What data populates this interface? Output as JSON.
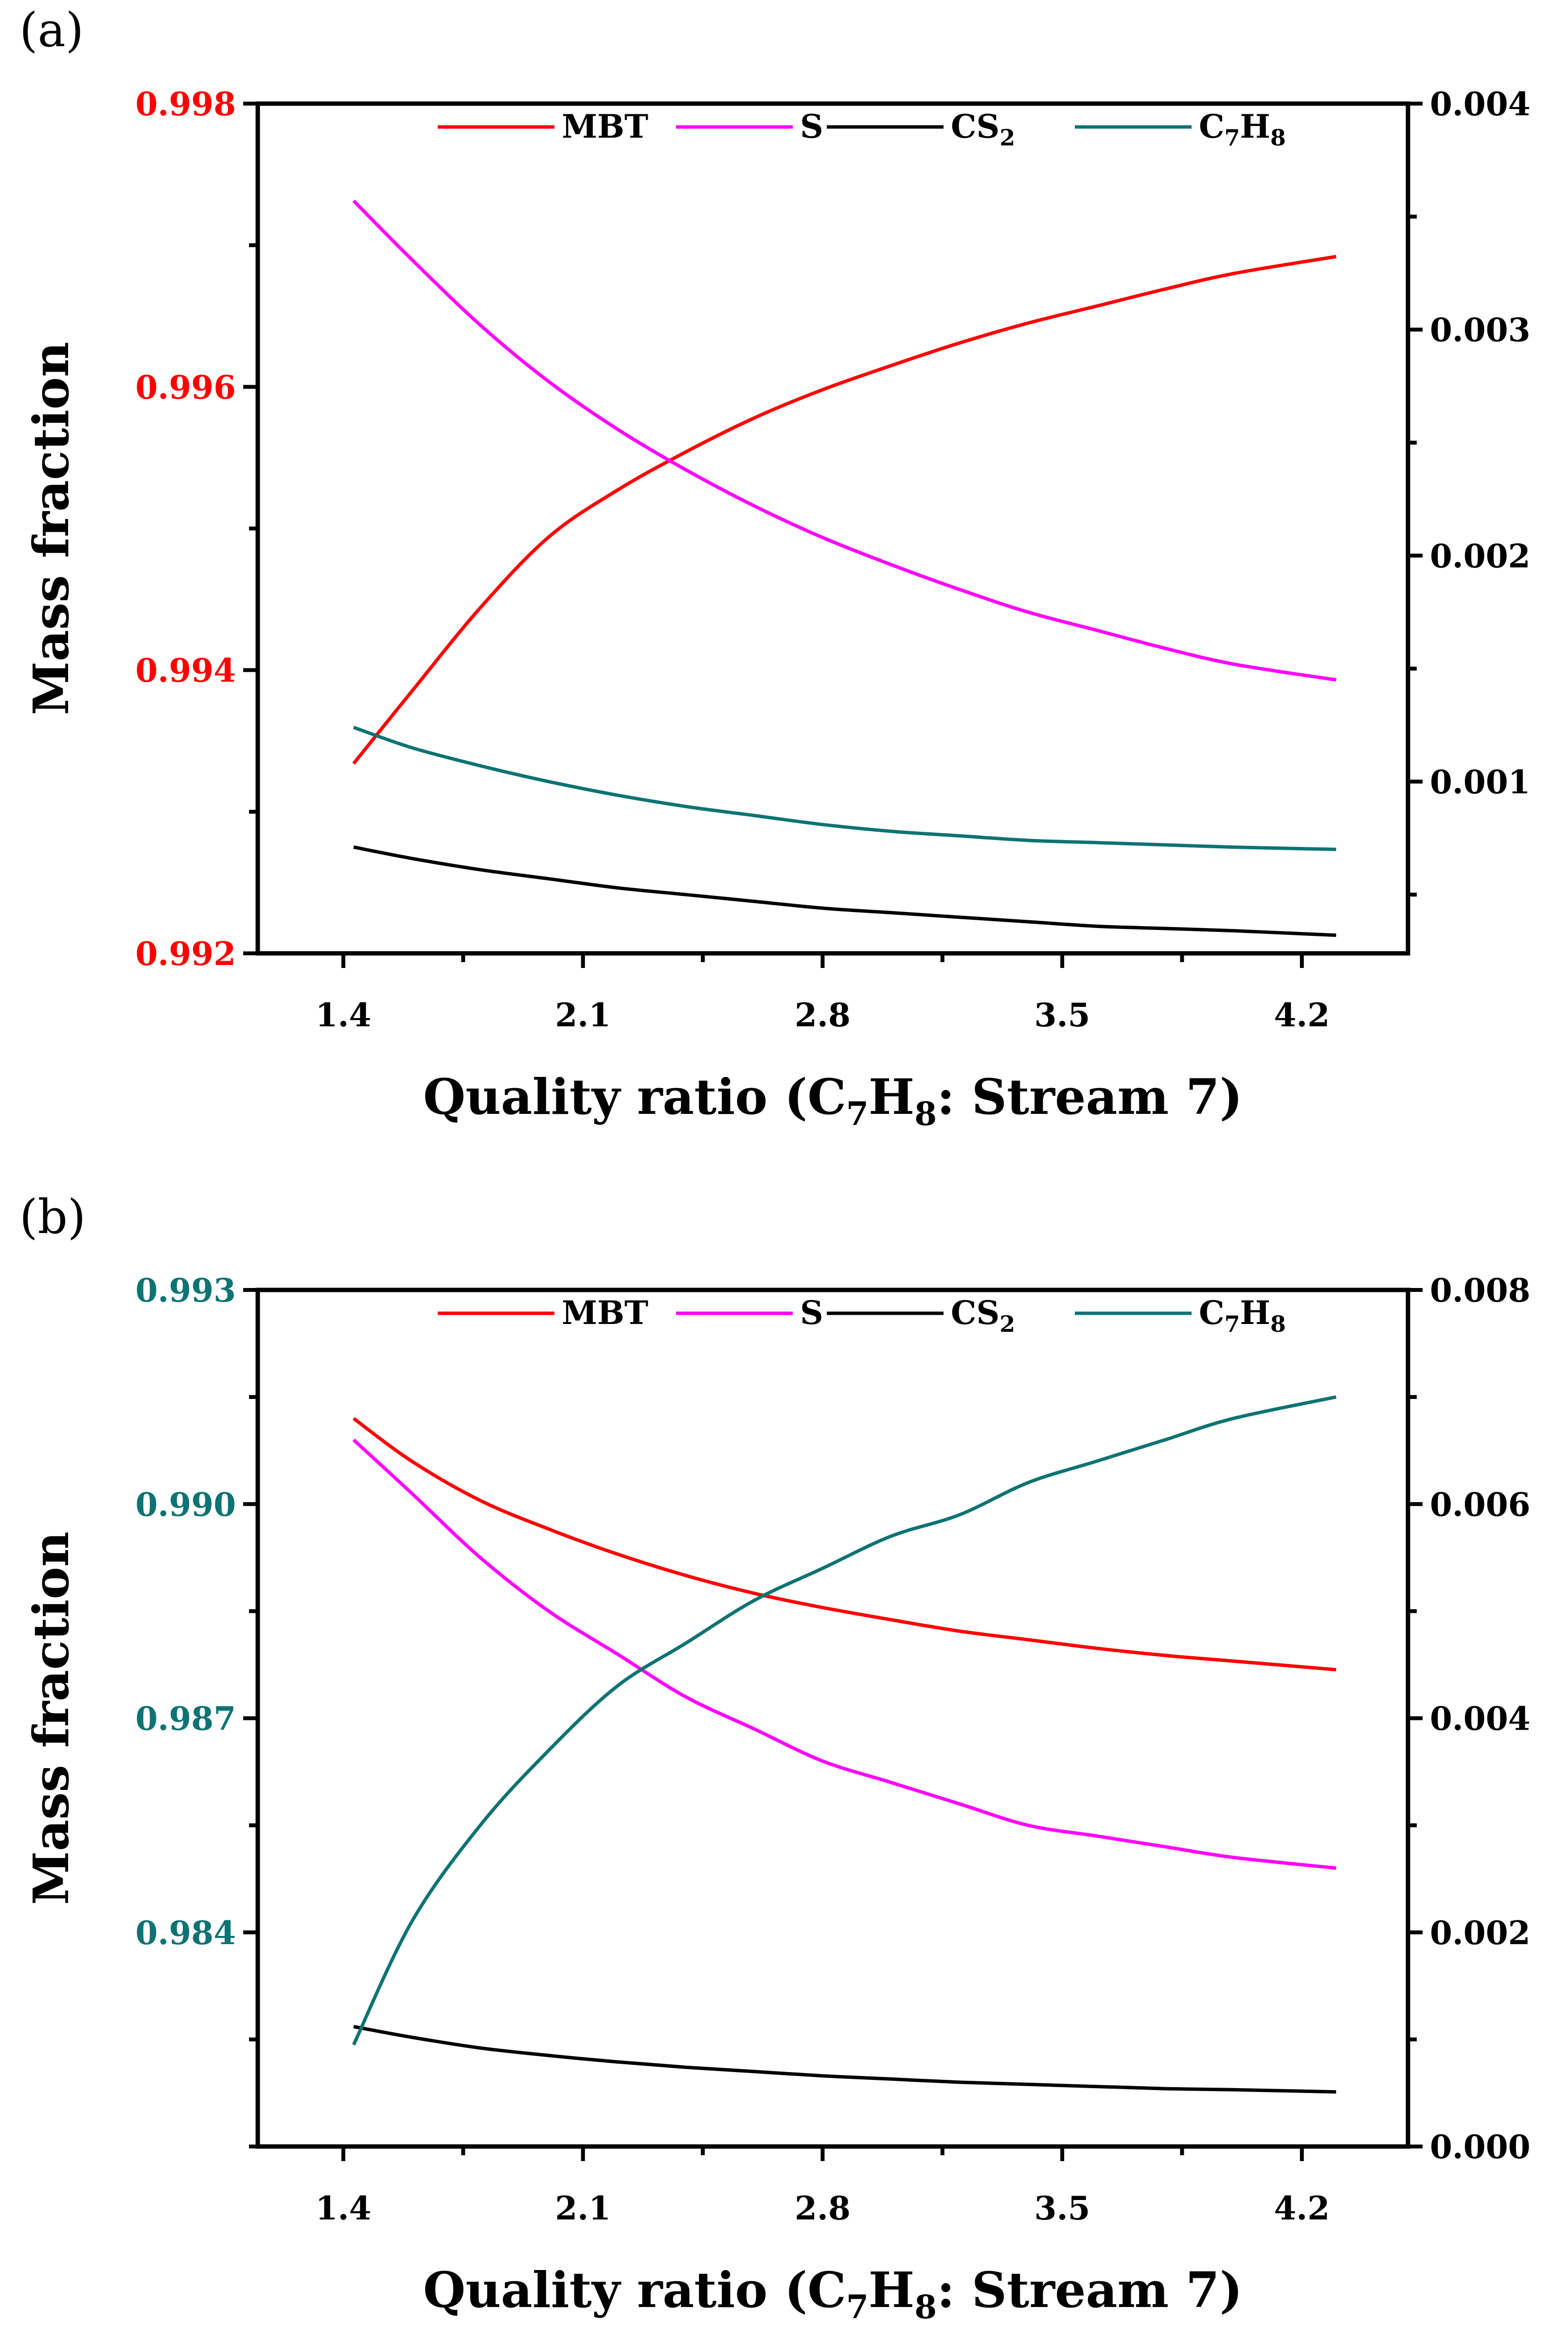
{
  "chart_data": [
    {
      "type": "line",
      "panel_label": "(a)",
      "xlabel": "Quality ratio (C7H8: Stream 7)",
      "ylabel": "Mass fraction",
      "x_ticks": [
        "1.4",
        "2.1",
        "2.8",
        "3.5",
        "4.2"
      ],
      "xlim": [
        1.15,
        4.51
      ],
      "left_axis": {
        "range": [
          0.992,
          0.998
        ],
        "ticks": [
          "0.992",
          "0.994",
          "0.996",
          "0.998"
        ],
        "tick_values": [
          0.992,
          0.994,
          0.996,
          0.998
        ],
        "color": "#ff0000"
      },
      "right_axis": {
        "range": [
          0.00024,
          0.004
        ],
        "ticks": [
          "0.001",
          "0.002",
          "0.003",
          "0.004"
        ],
        "tick_values": [
          0.001,
          0.002,
          0.003,
          0.004
        ],
        "color": "#000000"
      },
      "legend": [
        "MBT",
        "S",
        "CS2",
        "C7H8"
      ],
      "series": [
        {
          "name": "MBT",
          "axis": "left",
          "color": "#ff0000",
          "x": [
            1.43,
            1.6,
            1.8,
            2.0,
            2.2,
            2.4,
            2.6,
            2.8,
            3.0,
            3.2,
            3.4,
            3.6,
            3.8,
            4.0,
            4.3
          ],
          "values": [
            0.99334,
            0.99385,
            0.99444,
            0.99494,
            0.99527,
            0.99554,
            0.99578,
            0.99598,
            0.99615,
            0.99631,
            0.99645,
            0.99657,
            0.99669,
            0.9968,
            0.99692
          ]
        },
        {
          "name": "S",
          "axis": "right",
          "color": "#ff00ff",
          "x": [
            1.43,
            1.6,
            1.8,
            2.0,
            2.2,
            2.4,
            2.6,
            2.8,
            3.0,
            3.2,
            3.4,
            3.6,
            3.8,
            4.0,
            4.3
          ],
          "values": [
            0.00357,
            0.00331,
            0.00302,
            0.00277,
            0.00256,
            0.00238,
            0.00222,
            0.00208,
            0.00196,
            0.00185,
            0.00175,
            0.00167,
            0.00159,
            0.00152,
            0.00145
          ]
        },
        {
          "name": "CS2",
          "axis": "right",
          "color": "#000000",
          "x": [
            1.43,
            1.6,
            1.8,
            2.0,
            2.2,
            2.4,
            2.6,
            2.8,
            3.0,
            3.2,
            3.4,
            3.6,
            3.8,
            4.0,
            4.3
          ],
          "values": [
            0.00071,
            0.00066,
            0.00061,
            0.00057,
            0.00053,
            0.0005,
            0.00047,
            0.00044,
            0.00042,
            0.0004,
            0.00038,
            0.00036,
            0.00035,
            0.00034,
            0.00032
          ]
        },
        {
          "name": "C7H8",
          "axis": "right",
          "color": "#0d7373",
          "x": [
            1.43,
            1.6,
            1.8,
            2.0,
            2.2,
            2.4,
            2.6,
            2.8,
            3.0,
            3.2,
            3.4,
            3.6,
            3.8,
            4.0,
            4.3
          ],
          "values": [
            0.00124,
            0.00115,
            0.00107,
            0.001,
            0.00094,
            0.00089,
            0.00085,
            0.00081,
            0.00078,
            0.00076,
            0.00074,
            0.00073,
            0.00072,
            0.00071,
            0.0007
          ]
        }
      ]
    },
    {
      "type": "line",
      "panel_label": "(b)",
      "xlabel": "Quality ratio (C7H8: Stream 7)",
      "ylabel": "Mass fraction",
      "x_ticks": [
        "1.4",
        "2.1",
        "2.8",
        "3.5",
        "4.2"
      ],
      "xlim": [
        1.15,
        4.51
      ],
      "left_axis": {
        "range": [
          0.981,
          0.993
        ],
        "ticks": [
          "0.984",
          "0.987",
          "0.990",
          "0.993"
        ],
        "tick_values": [
          0.984,
          0.987,
          0.99,
          0.993
        ],
        "color": "#0d7373"
      },
      "right_axis": {
        "range": [
          0.0,
          0.008
        ],
        "ticks": [
          "0.000",
          "0.002",
          "0.004",
          "0.006",
          "0.008"
        ],
        "tick_values": [
          0.0,
          0.002,
          0.004,
          0.006,
          0.008
        ],
        "color": "#000000"
      },
      "legend": [
        "MBT",
        "S",
        "CS2",
        "C7H8"
      ],
      "series": [
        {
          "name": "MBT",
          "axis": "left",
          "color": "#ff0000",
          "x": [
            1.43,
            1.6,
            1.8,
            2.0,
            2.2,
            2.4,
            2.6,
            2.8,
            3.0,
            3.2,
            3.4,
            3.6,
            3.8,
            4.0,
            4.3
          ],
          "values": [
            0.9912,
            0.9906,
            0.99005,
            0.98965,
            0.9893,
            0.989,
            0.98875,
            0.98855,
            0.98838,
            0.98822,
            0.9881,
            0.98798,
            0.98788,
            0.9878,
            0.98768
          ]
        },
        {
          "name": "S",
          "axis": "right",
          "color": "#ff00ff",
          "x": [
            1.43,
            1.6,
            1.8,
            2.0,
            2.2,
            2.4,
            2.6,
            2.8,
            3.0,
            3.2,
            3.4,
            3.6,
            3.8,
            4.0,
            4.3
          ],
          "values": [
            0.0066,
            0.0061,
            0.0055,
            0.005,
            0.0046,
            0.0042,
            0.0039,
            0.0036,
            0.0034,
            0.0032,
            0.003,
            0.0029,
            0.0028,
            0.0027,
            0.0026
          ]
        },
        {
          "name": "CS2",
          "axis": "right",
          "color": "#000000",
          "x": [
            1.43,
            1.6,
            1.8,
            2.0,
            2.2,
            2.4,
            2.6,
            2.8,
            3.0,
            3.2,
            3.4,
            3.6,
            3.8,
            4.0,
            4.3
          ],
          "values": [
            0.00112,
            0.00102,
            0.00092,
            0.00085,
            0.00079,
            0.00074,
            0.0007,
            0.00066,
            0.00063,
            0.0006,
            0.00058,
            0.00056,
            0.00054,
            0.00053,
            0.00051
          ]
        },
        {
          "name": "C7H8",
          "axis": "right",
          "color": "#0d7373",
          "x": [
            1.43,
            1.6,
            1.8,
            2.0,
            2.2,
            2.4,
            2.6,
            2.8,
            3.0,
            3.2,
            3.4,
            3.6,
            3.8,
            4.0,
            4.3
          ],
          "values": [
            0.00095,
            0.0021,
            0.003,
            0.0037,
            0.0043,
            0.0047,
            0.0051,
            0.0054,
            0.0057,
            0.0059,
            0.0062,
            0.0064,
            0.0066,
            0.0068,
            0.007
          ]
        }
      ]
    }
  ]
}
